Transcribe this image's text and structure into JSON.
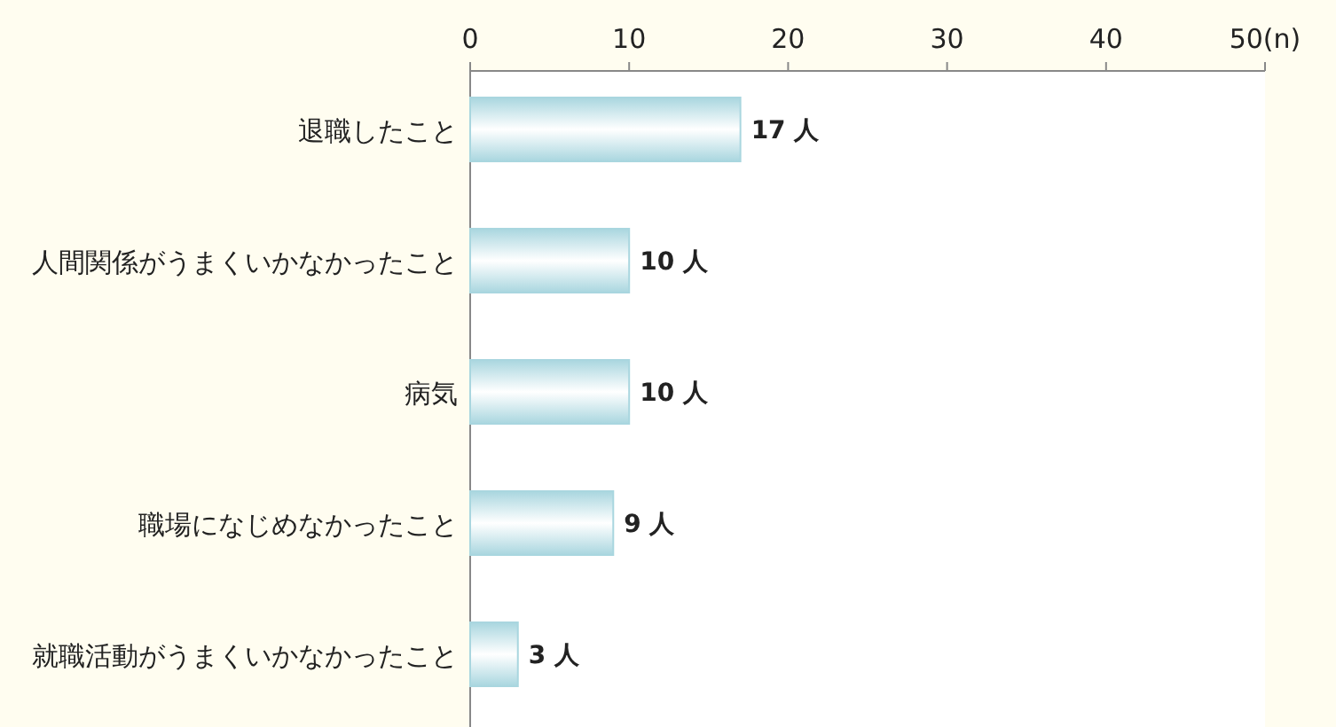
{
  "chart_data": {
    "type": "bar",
    "orientation": "horizontal",
    "categories": [
      "退職したこと",
      "人間関係がうまくいかなかったこと",
      "病気",
      "職場になじめなかったこと",
      "就職活動がうまくいかなかったこと"
    ],
    "values": [
      17,
      10,
      10,
      9,
      3
    ],
    "value_labels": [
      "17 人",
      "10 人",
      "10 人",
      "9 人",
      "3 人"
    ],
    "color": "#a9d6df",
    "xlim": [
      0,
      50
    ],
    "xticks": [
      0,
      10,
      20,
      30,
      40,
      {
        "value": 50,
        "label": "50(n)"
      }
    ],
    "grid": false
  }
}
